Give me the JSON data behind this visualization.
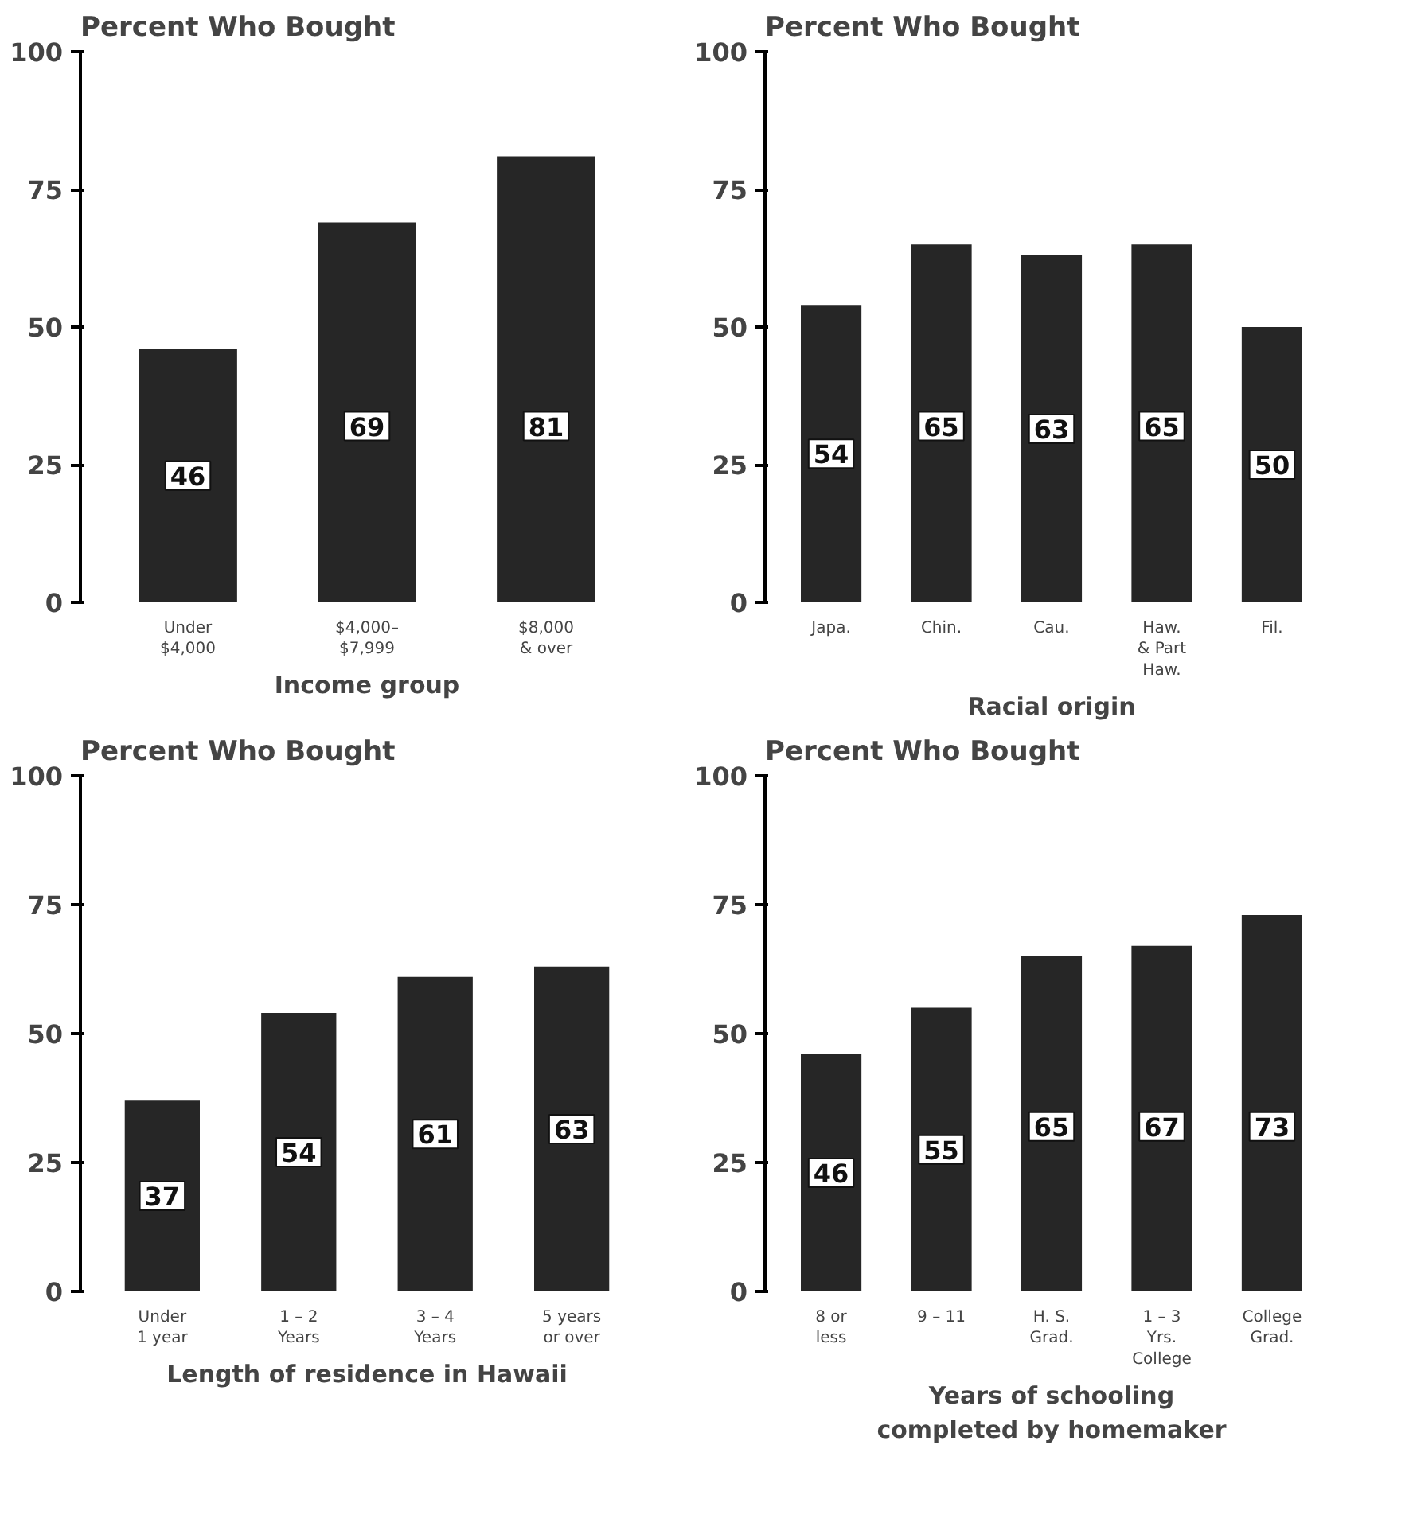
{
  "chart_data": [
    {
      "type": "bar",
      "title": "Percent Who Bought",
      "xlabel": "Income group",
      "categories": [
        "Under\n$4,000",
        "$4,000–\n$7,999",
        "$8,000\n& over"
      ],
      "values": [
        46,
        69,
        81
      ],
      "color": "#262626",
      "ylim": [
        0,
        100
      ],
      "yticks": [
        0,
        25,
        50,
        75,
        100
      ],
      "grid": false,
      "data_labels": true
    },
    {
      "type": "bar",
      "title": "Percent Who Bought",
      "xlabel": "Racial origin",
      "categories": [
        "Japa.",
        "Chin.",
        "Cau.",
        "Haw.\n& Part\nHaw.",
        "Fil."
      ],
      "values": [
        54,
        65,
        63,
        65,
        50
      ],
      "color": "#262626",
      "ylim": [
        0,
        100
      ],
      "yticks": [
        0,
        25,
        50,
        75,
        100
      ],
      "grid": false,
      "data_labels": true
    },
    {
      "type": "bar",
      "title": "Percent Who Bought",
      "xlabel": "Length of residence in Hawaii",
      "categories": [
        "Under\n1 year",
        "1 – 2\nYears",
        "3 – 4\nYears",
        "5 years\nor over"
      ],
      "values": [
        37,
        54,
        61,
        63
      ],
      "color": "#262626",
      "ylim": [
        0,
        100
      ],
      "yticks": [
        0,
        25,
        50,
        75,
        100
      ],
      "grid": false,
      "data_labels": true
    },
    {
      "type": "bar",
      "title": "Percent Who Bought",
      "xlabel": "Years of schooling\ncompleted by homemaker",
      "categories": [
        "8 or\nless",
        "9 – 11",
        "H. S.\nGrad.",
        "1 – 3\nYrs.\nCollege",
        "College\nGrad."
      ],
      "values": [
        46,
        55,
        65,
        67,
        73
      ],
      "color": "#262626",
      "ylim": [
        0,
        100
      ],
      "yticks": [
        0,
        25,
        50,
        75,
        100
      ],
      "grid": false,
      "data_labels": true
    }
  ]
}
